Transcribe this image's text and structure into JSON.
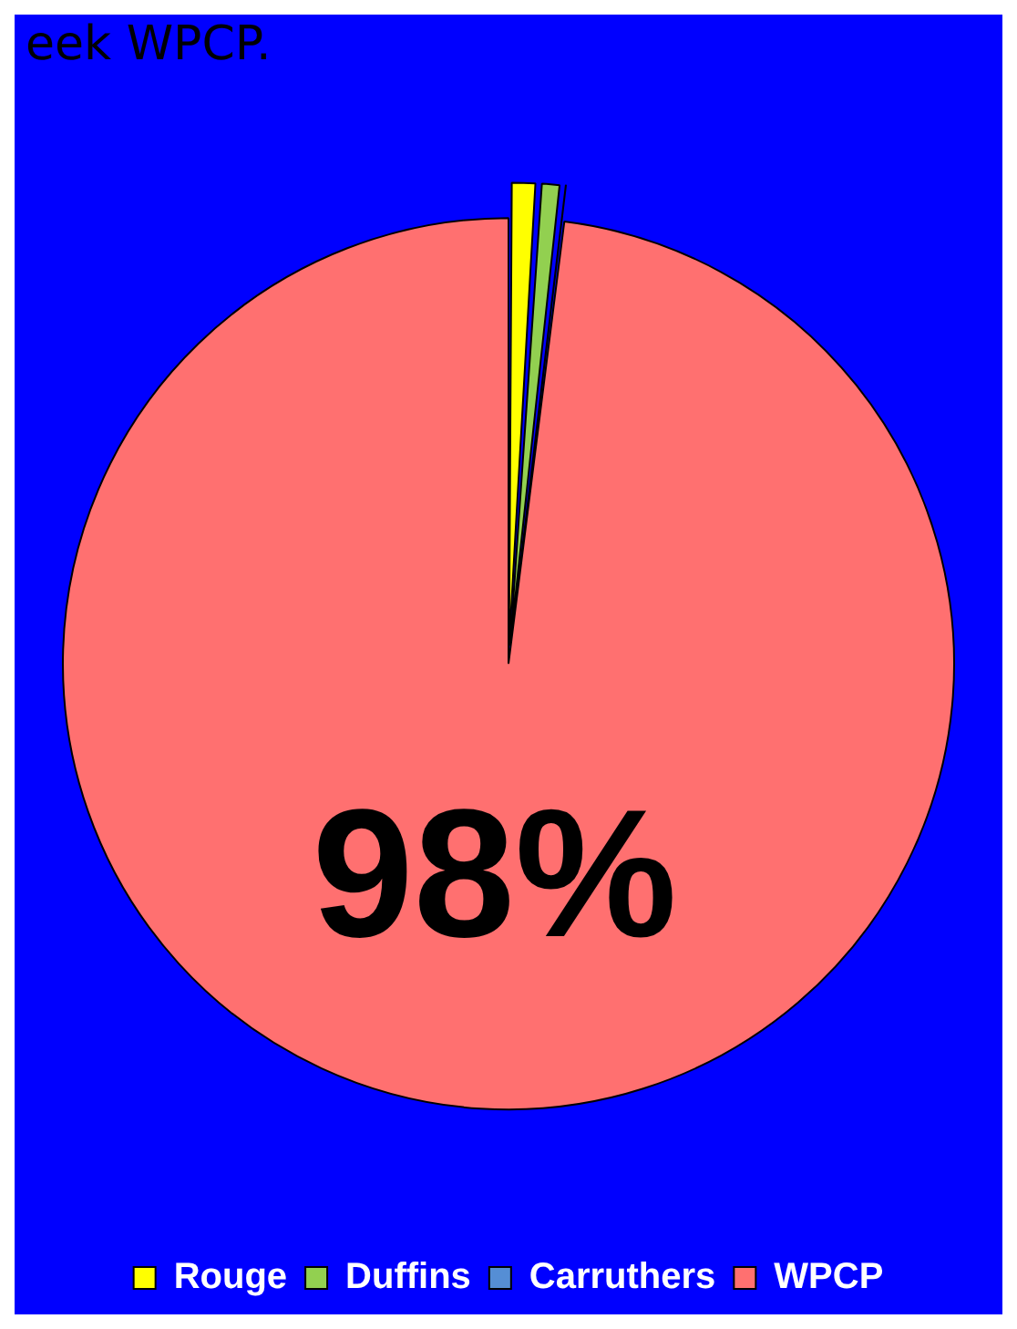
{
  "chart_data": {
    "type": "pie",
    "title": "eek WPCP.",
    "categories": [
      "Rouge",
      "Duffins",
      "Carruthers",
      "WPCP"
    ],
    "values": [
      1.0,
      0.8,
      0.2,
      98.0
    ],
    "colors": [
      "#ffff00",
      "#92d050",
      "#558ed5",
      "#ff7070"
    ],
    "value_labels": [
      null,
      null,
      null,
      "98%"
    ],
    "legend": "bottom"
  }
}
